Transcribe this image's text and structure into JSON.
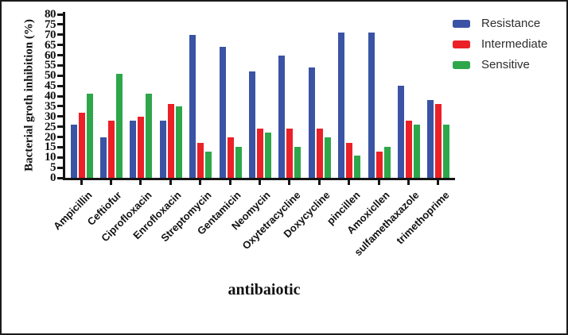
{
  "chart_data": {
    "type": "bar",
    "ylabel": "Bacterial groth inhibition (%)",
    "xlabel": "antibaiotic",
    "ylim": [
      0,
      80
    ],
    "yticks": [
      0,
      5,
      10,
      15,
      20,
      25,
      30,
      35,
      40,
      45,
      50,
      55,
      60,
      65,
      70,
      75,
      80
    ],
    "grid": false,
    "legend_position": "top-right",
    "categories": [
      "Ampicillin",
      "Ceftiofur",
      "Ciprofloxacin",
      "Enrofloxacin",
      "Streptomycin",
      "Gentamicin",
      "Neomycin",
      "Oxytetracycline",
      "Doxycycline",
      "pincillen",
      "Amoxicllen",
      "sulfamethaxazole",
      "trimethoprime"
    ],
    "series": [
      {
        "name": "Resistance",
        "color": "#3A53A4",
        "values": [
          26,
          20,
          28,
          28,
          70,
          64,
          52,
          60,
          54,
          71,
          71,
          45,
          38
        ]
      },
      {
        "name": "Intermediate",
        "color": "#EC2027",
        "values": [
          32,
          28,
          30,
          36,
          17,
          20,
          24,
          24,
          24,
          17,
          13,
          28,
          36
        ]
      },
      {
        "name": "Sensitive",
        "color": "#2EA74B",
        "values": [
          41,
          51,
          41,
          35,
          13,
          15,
          22,
          15,
          20,
          11,
          15,
          26,
          26
        ]
      }
    ]
  },
  "colors": {
    "axis": "#141414",
    "tick_text": "#111111",
    "legend_text": "#2e2e2e",
    "frame": "#1b1b1b",
    "background": "#ffffff"
  }
}
